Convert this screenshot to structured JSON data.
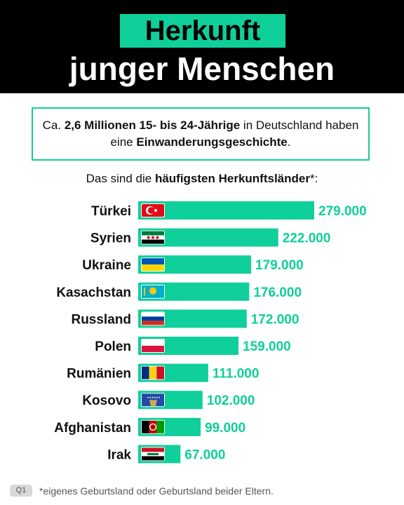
{
  "header": {
    "title_line1": "Herkunft",
    "title_line2": "junger Menschen"
  },
  "intro": {
    "part1": "Ca. ",
    "bold1": "2,6 Millionen 15- bis 24-Jährige",
    "part2": " in Deutschland haben eine ",
    "bold2": "Einwanderungsgeschichte",
    "part3": "."
  },
  "subtitle": {
    "part1": "Das sind die ",
    "bold": "häufigsten Herkunftsländer",
    "part2": "*:"
  },
  "colors": {
    "accent": "#0fcf9a",
    "header_bg": "#000000",
    "value_text": "#0fcf9a"
  },
  "chart_data": {
    "type": "bar",
    "orientation": "horizontal",
    "categories": [
      "Türkei",
      "Syrien",
      "Ukraine",
      "Kasachstan",
      "Russland",
      "Polen",
      "Rumänien",
      "Kosovo",
      "Afghanistan",
      "Irak"
    ],
    "values": [
      279000,
      222000,
      179000,
      176000,
      172000,
      159000,
      111000,
      102000,
      99000,
      67000
    ],
    "value_labels": [
      "279.000",
      "222.000",
      "179.000",
      "176.000",
      "172.000",
      "159.000",
      "111.000",
      "102.000",
      "99.000",
      "67.000"
    ],
    "flags": [
      "flag-turkey-icon",
      "flag-syria-icon",
      "flag-ukraine-icon",
      "flag-kazakhstan-icon",
      "flag-russia-icon",
      "flag-poland-icon",
      "flag-romania-icon",
      "flag-kosovo-icon",
      "flag-afghanistan-icon",
      "flag-iraq-icon"
    ]
  },
  "footer": {
    "badge": "Q1",
    "note": "*eigenes Geburtsland oder Geburtsland beider Eltern."
  }
}
